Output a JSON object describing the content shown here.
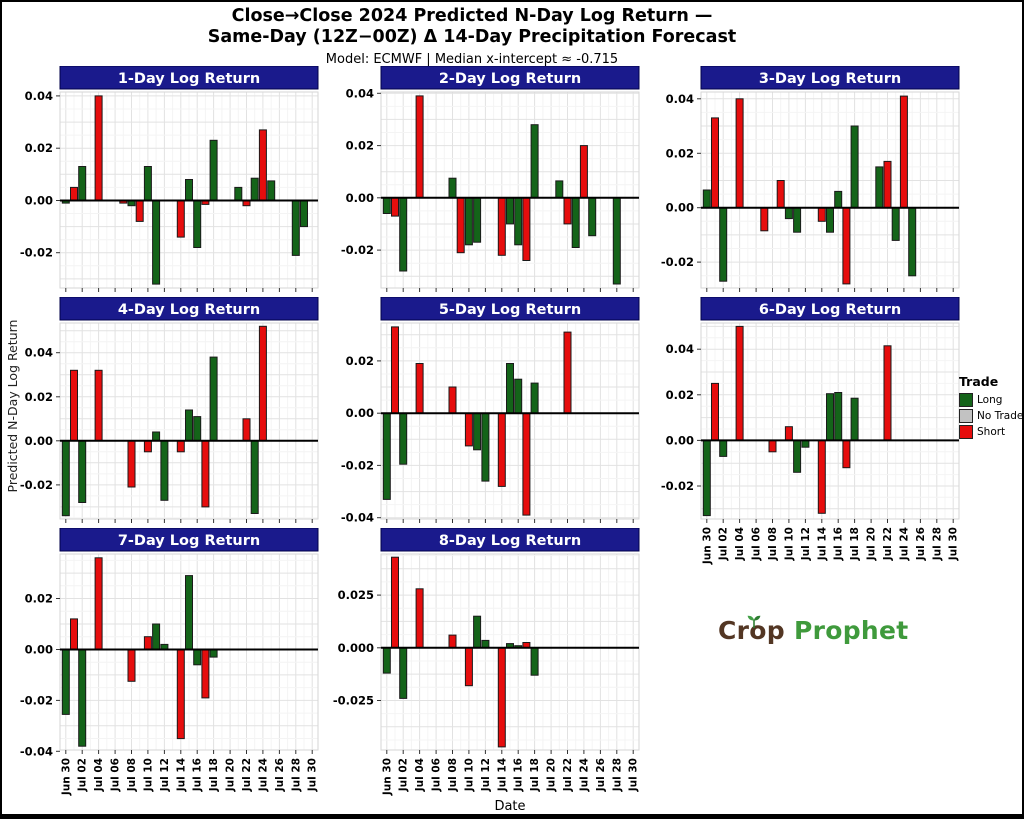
{
  "title": {
    "line1": "Close→Close 2024 Predicted N-Day Log Return —",
    "line2": "Same-Day (12Z−00Z) Δ 14-Day Precipitation Forecast",
    "subtitle": "Model: ECMWF | Median x-intercept ≈ -0.715"
  },
  "axis": {
    "y_label": "Predicted N-Day Log Return",
    "x_label": "Date"
  },
  "legend": {
    "title": "Trade",
    "entries": [
      {
        "label": "Long",
        "color_key": "long"
      },
      {
        "label": "No Trade",
        "color_key": "no_trade"
      },
      {
        "label": "Short",
        "color_key": "short"
      }
    ]
  },
  "logo": {
    "part1": "Crop",
    "part2": "Prophet"
  },
  "colors": {
    "header_bg": "#1a1a8c",
    "header_text": "#ffffff",
    "long": "#146419",
    "short": "#e60d0d",
    "no_trade": "#c2c2c2",
    "bar_stroke": "#1a1a1a",
    "zero_line": "#000000",
    "grid_major": "#e2e2e2",
    "grid_minor": "#f4f4f4"
  },
  "x_ticks": [
    "Jun 30",
    "Jul 02",
    "Jul 04",
    "Jul 06",
    "Jul 08",
    "Jul 10",
    "Jul 12",
    "Jul 14",
    "Jul 16",
    "Jul 18",
    "Jul 20",
    "Jul 22",
    "Jul 24",
    "Jul 26",
    "Jul 28",
    "Jul 30"
  ],
  "chart_data": [
    {
      "type": "bar",
      "title": "1-Day Log Return",
      "ylim": [
        -0.0335,
        0.0415
      ],
      "y_ticks": [
        0.04,
        0.02,
        0,
        -0.02
      ],
      "y_tick_labels": [
        "0.04",
        "0.02",
        "0.00",
        "-0.02"
      ],
      "show_x_labels": false,
      "bars": [
        {
          "date": "Jun 30",
          "value": -0.001,
          "trade": "Long"
        },
        {
          "date": "Jul 01",
          "value": 0.005,
          "trade": "Short"
        },
        {
          "date": "Jul 02",
          "value": 0.013,
          "trade": "Long"
        },
        {
          "date": "Jul 04",
          "value": 0.04,
          "trade": "Short"
        },
        {
          "date": "Jul 07",
          "value": -0.001,
          "trade": "Short"
        },
        {
          "date": "Jul 08",
          "value": -0.002,
          "trade": "Long"
        },
        {
          "date": "Jul 09",
          "value": -0.008,
          "trade": "Short"
        },
        {
          "date": "Jul 10",
          "value": 0.013,
          "trade": "Long"
        },
        {
          "date": "Jul 11",
          "value": -0.032,
          "trade": "Long"
        },
        {
          "date": "Jul 14",
          "value": -0.014,
          "trade": "Short"
        },
        {
          "date": "Jul 15",
          "value": 0.008,
          "trade": "Long"
        },
        {
          "date": "Jul 16",
          "value": -0.018,
          "trade": "Long"
        },
        {
          "date": "Jul 17",
          "value": -0.0015,
          "trade": "Short"
        },
        {
          "date": "Jul 18",
          "value": 0.023,
          "trade": "Long"
        },
        {
          "date": "Jul 21",
          "value": 0.005,
          "trade": "Long"
        },
        {
          "date": "Jul 22",
          "value": -0.002,
          "trade": "Short"
        },
        {
          "date": "Jul 23",
          "value": 0.0085,
          "trade": "Long"
        },
        {
          "date": "Jul 24",
          "value": 0.027,
          "trade": "Short"
        },
        {
          "date": "Jul 25",
          "value": 0.0075,
          "trade": "Long"
        },
        {
          "date": "Jul 28",
          "value": -0.021,
          "trade": "Long"
        },
        {
          "date": "Jul 29",
          "value": -0.01,
          "trade": "Long"
        }
      ]
    },
    {
      "type": "bar",
      "title": "2-Day Log Return",
      "ylim": [
        -0.0345,
        0.0405
      ],
      "y_ticks": [
        0.04,
        0.02,
        0,
        -0.02
      ],
      "y_tick_labels": [
        "0.04",
        "0.02",
        "0.00",
        "-0.02"
      ],
      "show_x_labels": false,
      "bars": [
        {
          "date": "Jun 30",
          "value": -0.006,
          "trade": "Long"
        },
        {
          "date": "Jul 01",
          "value": -0.007,
          "trade": "Short"
        },
        {
          "date": "Jul 02",
          "value": -0.028,
          "trade": "Long"
        },
        {
          "date": "Jul 04",
          "value": 0.039,
          "trade": "Short"
        },
        {
          "date": "Jul 08",
          "value": 0.0075,
          "trade": "Long"
        },
        {
          "date": "Jul 09",
          "value": -0.021,
          "trade": "Short"
        },
        {
          "date": "Jul 10",
          "value": -0.018,
          "trade": "Long"
        },
        {
          "date": "Jul 11",
          "value": -0.017,
          "trade": "Long"
        },
        {
          "date": "Jul 14",
          "value": -0.022,
          "trade": "Short"
        },
        {
          "date": "Jul 15",
          "value": -0.01,
          "trade": "Long"
        },
        {
          "date": "Jul 16",
          "value": -0.018,
          "trade": "Long"
        },
        {
          "date": "Jul 17",
          "value": -0.024,
          "trade": "Short"
        },
        {
          "date": "Jul 18",
          "value": 0.028,
          "trade": "Long"
        },
        {
          "date": "Jul 21",
          "value": 0.0065,
          "trade": "Long"
        },
        {
          "date": "Jul 22",
          "value": -0.01,
          "trade": "Short"
        },
        {
          "date": "Jul 23",
          "value": -0.019,
          "trade": "Long"
        },
        {
          "date": "Jul 24",
          "value": 0.02,
          "trade": "Short"
        },
        {
          "date": "Jul 25",
          "value": -0.0145,
          "trade": "Long"
        },
        {
          "date": "Jul 28",
          "value": -0.033,
          "trade": "Long"
        }
      ]
    },
    {
      "type": "bar",
      "title": "3-Day Log Return",
      "ylim": [
        -0.0295,
        0.0425
      ],
      "y_ticks": [
        0.04,
        0.02,
        0,
        -0.02
      ],
      "y_tick_labels": [
        "0.04",
        "0.02",
        "0.00",
        "-0.02"
      ],
      "show_x_labels": false,
      "bars": [
        {
          "date": "Jun 30",
          "value": 0.0065,
          "trade": "Long"
        },
        {
          "date": "Jul 01",
          "value": 0.033,
          "trade": "Short"
        },
        {
          "date": "Jul 02",
          "value": -0.027,
          "trade": "Long"
        },
        {
          "date": "Jul 04",
          "value": 0.04,
          "trade": "Short"
        },
        {
          "date": "Jul 07",
          "value": -0.0085,
          "trade": "Short"
        },
        {
          "date": "Jul 09",
          "value": 0.01,
          "trade": "Short"
        },
        {
          "date": "Jul 10",
          "value": -0.004,
          "trade": "Long"
        },
        {
          "date": "Jul 11",
          "value": -0.009,
          "trade": "Long"
        },
        {
          "date": "Jul 14",
          "value": -0.005,
          "trade": "Short"
        },
        {
          "date": "Jul 15",
          "value": -0.009,
          "trade": "Long"
        },
        {
          "date": "Jul 16",
          "value": 0.006,
          "trade": "Long"
        },
        {
          "date": "Jul 17",
          "value": -0.028,
          "trade": "Short"
        },
        {
          "date": "Jul 18",
          "value": 0.03,
          "trade": "Long"
        },
        {
          "date": "Jul 21",
          "value": 0.015,
          "trade": "Long"
        },
        {
          "date": "Jul 22",
          "value": 0.017,
          "trade": "Short"
        },
        {
          "date": "Jul 23",
          "value": -0.012,
          "trade": "Long"
        },
        {
          "date": "Jul 24",
          "value": 0.041,
          "trade": "Short"
        },
        {
          "date": "Jul 25",
          "value": -0.025,
          "trade": "Long"
        }
      ]
    },
    {
      "type": "bar",
      "title": "4-Day Log Return",
      "ylim": [
        -0.0355,
        0.0535
      ],
      "y_ticks": [
        0.04,
        0.02,
        0,
        -0.02
      ],
      "y_tick_labels": [
        "0.04",
        "0.02",
        "0.00",
        "-0.02"
      ],
      "show_x_labels": false,
      "bars": [
        {
          "date": "Jun 30",
          "value": -0.034,
          "trade": "Long"
        },
        {
          "date": "Jul 01",
          "value": 0.032,
          "trade": "Short"
        },
        {
          "date": "Jul 02",
          "value": -0.028,
          "trade": "Long"
        },
        {
          "date": "Jul 04",
          "value": 0.032,
          "trade": "Short"
        },
        {
          "date": "Jul 08",
          "value": -0.021,
          "trade": "Short"
        },
        {
          "date": "Jul 10",
          "value": -0.005,
          "trade": "Short"
        },
        {
          "date": "Jul 11",
          "value": 0.004,
          "trade": "Long"
        },
        {
          "date": "Jul 12",
          "value": -0.027,
          "trade": "Long"
        },
        {
          "date": "Jul 14",
          "value": -0.005,
          "trade": "Short"
        },
        {
          "date": "Jul 15",
          "value": 0.014,
          "trade": "Long"
        },
        {
          "date": "Jul 16",
          "value": 0.011,
          "trade": "Long"
        },
        {
          "date": "Jul 17",
          "value": -0.03,
          "trade": "Short"
        },
        {
          "date": "Jul 18",
          "value": 0.038,
          "trade": "Long"
        },
        {
          "date": "Jul 22",
          "value": 0.01,
          "trade": "Short"
        },
        {
          "date": "Jul 23",
          "value": -0.033,
          "trade": "Long"
        },
        {
          "date": "Jul 24",
          "value": 0.052,
          "trade": "Short"
        }
      ]
    },
    {
      "type": "bar",
      "title": "5-Day Log Return",
      "ylim": [
        -0.0405,
        0.0345
      ],
      "y_ticks": [
        0.02,
        0,
        -0.02,
        -0.04
      ],
      "y_tick_labels": [
        "0.02",
        "0.00",
        "-0.02",
        "-0.04"
      ],
      "show_x_labels": false,
      "bars": [
        {
          "date": "Jun 30",
          "value": -0.033,
          "trade": "Long"
        },
        {
          "date": "Jul 01",
          "value": 0.033,
          "trade": "Short"
        },
        {
          "date": "Jul 02",
          "value": -0.0195,
          "trade": "Long"
        },
        {
          "date": "Jul 04",
          "value": 0.019,
          "trade": "Short"
        },
        {
          "date": "Jul 08",
          "value": 0.01,
          "trade": "Short"
        },
        {
          "date": "Jul 10",
          "value": -0.0125,
          "trade": "Short"
        },
        {
          "date": "Jul 11",
          "value": -0.014,
          "trade": "Long"
        },
        {
          "date": "Jul 12",
          "value": -0.026,
          "trade": "Long"
        },
        {
          "date": "Jul 14",
          "value": -0.028,
          "trade": "Short"
        },
        {
          "date": "Jul 15",
          "value": 0.019,
          "trade": "Long"
        },
        {
          "date": "Jul 16",
          "value": 0.013,
          "trade": "Long"
        },
        {
          "date": "Jul 17",
          "value": -0.039,
          "trade": "Short"
        },
        {
          "date": "Jul 18",
          "value": 0.0115,
          "trade": "Long"
        },
        {
          "date": "Jul 22",
          "value": 0.031,
          "trade": "Short"
        }
      ]
    },
    {
      "type": "bar",
      "title": "6-Day Log Return",
      "ylim": [
        -0.0345,
        0.0515
      ],
      "y_ticks": [
        0.04,
        0.02,
        0,
        -0.02
      ],
      "y_tick_labels": [
        "0.04",
        "0.02",
        "0.00",
        "-0.02"
      ],
      "show_x_labels": true,
      "bars": [
        {
          "date": "Jun 30",
          "value": -0.033,
          "trade": "Long"
        },
        {
          "date": "Jul 01",
          "value": 0.025,
          "trade": "Short"
        },
        {
          "date": "Jul 02",
          "value": -0.007,
          "trade": "Long"
        },
        {
          "date": "Jul 04",
          "value": 0.05,
          "trade": "Short"
        },
        {
          "date": "Jul 08",
          "value": -0.005,
          "trade": "Short"
        },
        {
          "date": "Jul 10",
          "value": 0.006,
          "trade": "Short"
        },
        {
          "date": "Jul 11",
          "value": -0.014,
          "trade": "Long"
        },
        {
          "date": "Jul 12",
          "value": -0.003,
          "trade": "Long"
        },
        {
          "date": "Jul 14",
          "value": -0.032,
          "trade": "Short"
        },
        {
          "date": "Jul 15",
          "value": 0.0205,
          "trade": "Long"
        },
        {
          "date": "Jul 16",
          "value": 0.021,
          "trade": "Long"
        },
        {
          "date": "Jul 17",
          "value": -0.012,
          "trade": "Short"
        },
        {
          "date": "Jul 18",
          "value": 0.0185,
          "trade": "Long"
        },
        {
          "date": "Jul 22",
          "value": 0.0415,
          "trade": "Short"
        }
      ]
    },
    {
      "type": "bar",
      "title": "7-Day Log Return",
      "ylim": [
        -0.0395,
        0.0375
      ],
      "y_ticks": [
        0.02,
        0,
        -0.02,
        -0.04
      ],
      "y_tick_labels": [
        "0.02",
        "0.00",
        "-0.02",
        "-0.04"
      ],
      "show_x_labels": true,
      "bars": [
        {
          "date": "Jun 30",
          "value": -0.0255,
          "trade": "Long"
        },
        {
          "date": "Jul 01",
          "value": 0.012,
          "trade": "Short"
        },
        {
          "date": "Jul 02",
          "value": -0.038,
          "trade": "Long"
        },
        {
          "date": "Jul 04",
          "value": 0.036,
          "trade": "Short"
        },
        {
          "date": "Jul 08",
          "value": -0.0125,
          "trade": "Short"
        },
        {
          "date": "Jul 10",
          "value": 0.005,
          "trade": "Short"
        },
        {
          "date": "Jul 11",
          "value": 0.01,
          "trade": "Long"
        },
        {
          "date": "Jul 12",
          "value": 0.002,
          "trade": "Long"
        },
        {
          "date": "Jul 14",
          "value": -0.035,
          "trade": "Short"
        },
        {
          "date": "Jul 15",
          "value": 0.029,
          "trade": "Long"
        },
        {
          "date": "Jul 16",
          "value": -0.006,
          "trade": "Long"
        },
        {
          "date": "Jul 17",
          "value": -0.019,
          "trade": "Short"
        },
        {
          "date": "Jul 18",
          "value": -0.003,
          "trade": "Long"
        }
      ]
    },
    {
      "type": "bar",
      "title": "8-Day Log Return",
      "ylim": [
        -0.0485,
        0.0445
      ],
      "y_ticks": [
        0.025,
        0,
        -0.025
      ],
      "y_tick_labels": [
        "0.025",
        "0.000",
        "-0.025"
      ],
      "show_x_labels": true,
      "x_title": "Date",
      "bars": [
        {
          "date": "Jun 30",
          "value": -0.012,
          "trade": "Long"
        },
        {
          "date": "Jul 01",
          "value": 0.043,
          "trade": "Short"
        },
        {
          "date": "Jul 02",
          "value": -0.024,
          "trade": "Long"
        },
        {
          "date": "Jul 04",
          "value": 0.028,
          "trade": "Short"
        },
        {
          "date": "Jul 08",
          "value": 0.006,
          "trade": "Short"
        },
        {
          "date": "Jul 10",
          "value": -0.018,
          "trade": "Short"
        },
        {
          "date": "Jul 11",
          "value": 0.015,
          "trade": "Long"
        },
        {
          "date": "Jul 12",
          "value": 0.0035,
          "trade": "Long"
        },
        {
          "date": "Jul 14",
          "value": -0.047,
          "trade": "Short"
        },
        {
          "date": "Jul 15",
          "value": 0.002,
          "trade": "Long"
        },
        {
          "date": "Jul 16",
          "value": 0.001,
          "trade": "Long"
        },
        {
          "date": "Jul 17",
          "value": 0.0025,
          "trade": "Short"
        },
        {
          "date": "Jul 18",
          "value": -0.013,
          "trade": "Long"
        }
      ]
    }
  ]
}
